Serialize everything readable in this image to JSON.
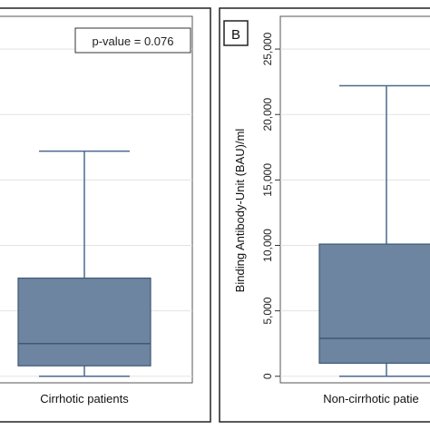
{
  "chart_data": [
    {
      "type": "box",
      "panel": "",
      "annotation": "p-value = 0.076",
      "categories": [
        "Cirrhotic patients"
      ],
      "boxes": [
        {
          "category": "Cirrhotic patients",
          "min": 0,
          "q1": 800,
          "median": 2500,
          "q3": 7500,
          "max": 17200
        }
      ],
      "yticks": [
        0,
        5000,
        10000,
        15000,
        20000,
        25000
      ],
      "ylim": [
        -500,
        27500
      ],
      "ylabel": "",
      "grid": true,
      "colors": {
        "box_fill": "#6e85a2",
        "box_stroke": "#3f5875",
        "whisker": "#4a6a8d",
        "grid": "#e3e3e3",
        "frame": "#222222"
      }
    },
    {
      "type": "box",
      "panel": "B",
      "annotation": "",
      "categories": [
        "Non-cirrhotic patie"
      ],
      "boxes": [
        {
          "category": "Non-cirrhotic patie",
          "min": 0,
          "q1": 1000,
          "median": 2900,
          "q3": 10100,
          "max": 22200
        }
      ],
      "yticks": [
        "0",
        "5,000",
        "10,000",
        "15,000",
        "20,000",
        "25,000"
      ],
      "yticks_values": [
        0,
        5000,
        10000,
        15000,
        20000,
        25000
      ],
      "ylim": [
        -500,
        27500
      ],
      "ylabel": "Binding Antibody-Unit (BAU)/ml",
      "grid": true,
      "colors": {
        "box_fill": "#6e85a2",
        "box_stroke": "#3f5875",
        "whisker": "#4a6a8d",
        "grid": "#e3e3e3",
        "frame": "#222222"
      }
    }
  ]
}
